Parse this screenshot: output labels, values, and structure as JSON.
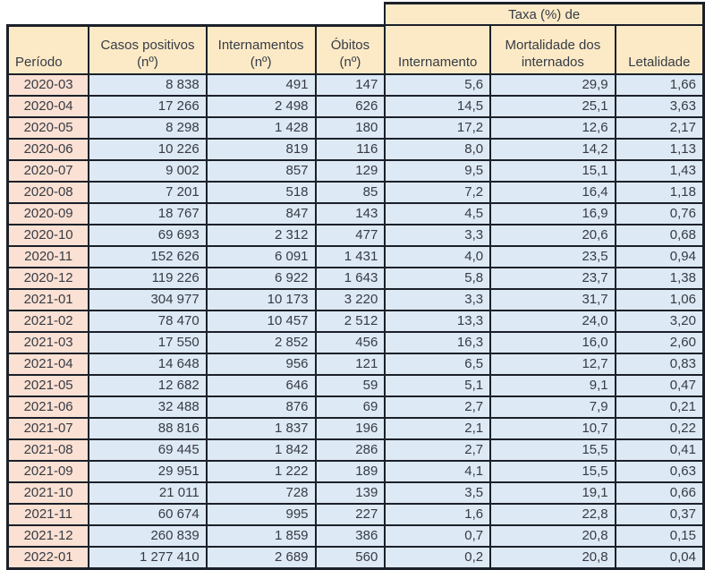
{
  "styles": {
    "header_bg": "#FCEAC6",
    "period_bg": "#FBE1D3",
    "data_bg": "#DDE9F5",
    "border_color": "#1B2029",
    "text_color": "#363B45",
    "page_bg": "#FFFFFF"
  },
  "chart_data": {
    "type": "table",
    "group_header": "Taxa (%) de",
    "group_header_spans": [
      "Internamento",
      "Mortalidade dos internados",
      "Letalidade"
    ],
    "columns": [
      "Período",
      "Casos positivos (nº)",
      "Internamentos (nº)",
      "Óbitos (nº)",
      "Internamento",
      "Mortalidade dos internados",
      "Letalidade"
    ],
    "rows": [
      [
        "2020-03",
        "8 838",
        "491",
        "147",
        "5,6",
        "29,9",
        "1,66"
      ],
      [
        "2020-04",
        "17 266",
        "2 498",
        "626",
        "14,5",
        "25,1",
        "3,63"
      ],
      [
        "2020-05",
        "8 298",
        "1 428",
        "180",
        "17,2",
        "12,6",
        "2,17"
      ],
      [
        "2020-06",
        "10 226",
        "819",
        "116",
        "8,0",
        "14,2",
        "1,13"
      ],
      [
        "2020-07",
        "9 002",
        "857",
        "129",
        "9,5",
        "15,1",
        "1,43"
      ],
      [
        "2020-08",
        "7 201",
        "518",
        "85",
        "7,2",
        "16,4",
        "1,18"
      ],
      [
        "2020-09",
        "18 767",
        "847",
        "143",
        "4,5",
        "16,9",
        "0,76"
      ],
      [
        "2020-10",
        "69 693",
        "2 312",
        "477",
        "3,3",
        "20,6",
        "0,68"
      ],
      [
        "2020-11",
        "152 626",
        "6 091",
        "1 431",
        "4,0",
        "23,5",
        "0,94"
      ],
      [
        "2020-12",
        "119 226",
        "6 922",
        "1 643",
        "5,8",
        "23,7",
        "1,38"
      ],
      [
        "2021-01",
        "304 977",
        "10 173",
        "3 220",
        "3,3",
        "31,7",
        "1,06"
      ],
      [
        "2021-02",
        "78 470",
        "10 457",
        "2 512",
        "13,3",
        "24,0",
        "3,20"
      ],
      [
        "2021-03",
        "17 550",
        "2 852",
        "456",
        "16,3",
        "16,0",
        "2,60"
      ],
      [
        "2021-04",
        "14 648",
        "956",
        "121",
        "6,5",
        "12,7",
        "0,83"
      ],
      [
        "2021-05",
        "12 682",
        "646",
        "59",
        "5,1",
        "9,1",
        "0,47"
      ],
      [
        "2021-06",
        "32 488",
        "876",
        "69",
        "2,7",
        "7,9",
        "0,21"
      ],
      [
        "2021-07",
        "88 816",
        "1 837",
        "196",
        "2,1",
        "10,7",
        "0,22"
      ],
      [
        "2021-08",
        "69 445",
        "1 842",
        "286",
        "2,7",
        "15,5",
        "0,41"
      ],
      [
        "2021-09",
        "29 951",
        "1 222",
        "189",
        "4,1",
        "15,5",
        "0,63"
      ],
      [
        "2021-10",
        "21 011",
        "728",
        "139",
        "3,5",
        "19,1",
        "0,66"
      ],
      [
        "2021-11",
        "60 674",
        "995",
        "227",
        "1,6",
        "22,8",
        "0,37"
      ],
      [
        "2021-12",
        "260 839",
        "1 859",
        "386",
        "0,7",
        "20,8",
        "0,15"
      ],
      [
        "2022-01",
        "1 277 410",
        "2 689",
        "560",
        "0,2",
        "20,8",
        "0,04"
      ]
    ]
  }
}
